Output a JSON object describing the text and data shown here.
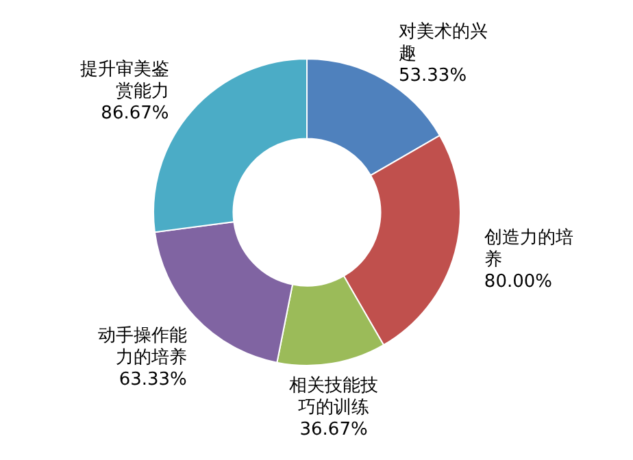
{
  "chart_data": {
    "type": "donut",
    "categories": [
      "对美术的兴趣",
      "创造力的培养",
      "相关技能技巧的训练",
      "动手操作能力的培养",
      "提升审美鉴赏能力"
    ],
    "values": [
      53.33,
      80.0,
      36.67,
      63.33,
      86.67
    ],
    "value_labels": [
      "53.33%",
      "80.00%",
      "36.67%",
      "63.33%",
      "86.67%"
    ],
    "colors": [
      "#4f81bd",
      "#c0504d",
      "#9bbb59",
      "#8064a2",
      "#4bacc6"
    ],
    "legend": false
  }
}
